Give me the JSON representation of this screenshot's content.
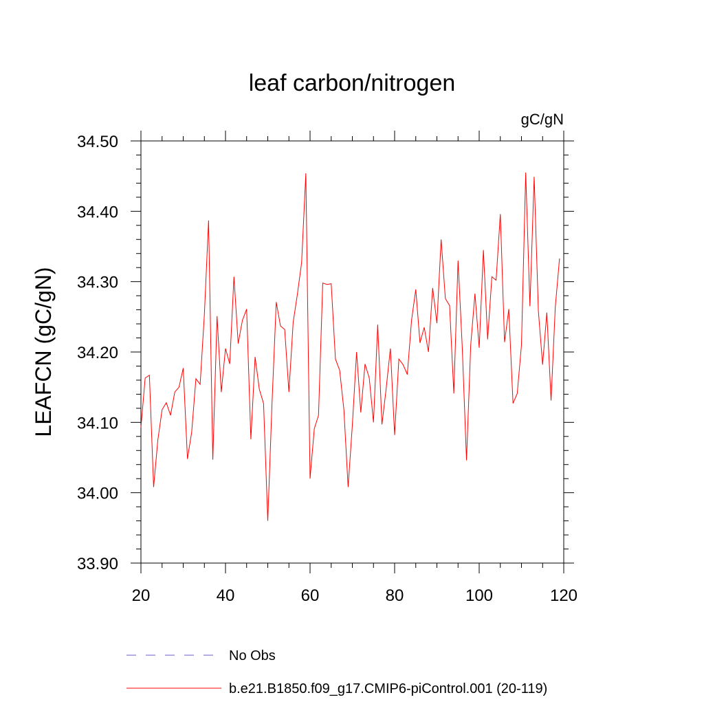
{
  "chart_data": {
    "type": "line",
    "title": "leaf carbon/nitrogen",
    "units": "gC/gN",
    "ylabel": "LEAFCN  (gC/gN)",
    "xlabel": "",
    "xlim": [
      20,
      119
    ],
    "ylim": [
      33.9,
      34.5
    ],
    "x_ticks": [
      "20",
      "40",
      "60",
      "80",
      "100",
      "120"
    ],
    "y_ticks": [
      "33.90",
      "34.00",
      "34.10",
      "34.20",
      "34.30",
      "34.40",
      "34.50"
    ],
    "colors": {
      "model": "#ff0000",
      "obs": "#6a5acd"
    },
    "series": [
      {
        "name": "b.e21.B1850.f09_g17.CMIP6-piControl.001 (20-119)",
        "x_start": 20,
        "x_step": 1,
        "values": [
          34.093,
          34.163,
          34.167,
          34.008,
          34.075,
          34.118,
          34.128,
          34.11,
          34.143,
          34.15,
          34.177,
          34.048,
          34.086,
          34.162,
          34.154,
          34.253,
          34.387,
          34.047,
          34.251,
          34.143,
          34.205,
          34.183,
          34.307,
          34.212,
          34.245,
          34.261,
          34.076,
          34.193,
          34.147,
          34.127,
          33.96,
          34.127,
          34.271,
          34.237,
          34.232,
          34.143,
          34.242,
          34.282,
          34.327,
          34.454,
          34.02,
          34.091,
          34.11,
          34.298,
          34.296,
          34.297,
          34.19,
          34.174,
          34.118,
          34.008,
          34.096,
          34.2,
          34.114,
          34.183,
          34.163,
          34.1,
          34.239,
          34.097,
          34.148,
          34.205,
          34.082,
          34.19,
          34.182,
          34.168,
          34.245,
          34.289,
          34.213,
          34.235,
          34.2,
          34.291,
          34.241,
          34.36,
          34.276,
          34.266,
          34.141,
          34.33,
          34.206,
          34.046,
          34.21,
          34.283,
          34.206,
          34.345,
          34.218,
          34.307,
          34.302,
          34.396,
          34.214,
          34.261,
          34.127,
          34.141,
          34.21,
          34.455,
          34.265,
          34.449,
          34.258,
          34.182,
          34.256,
          34.131,
          34.264,
          34.333
        ]
      }
    ],
    "legend": {
      "placement": "bottom",
      "entries": [
        {
          "label": "No Obs",
          "style": "dashed",
          "color": "#6a5acd"
        },
        {
          "label": "b.e21.B1850.f09_g17.CMIP6-piControl.001 (20-119)",
          "style": "solid",
          "color": "#ff0000"
        }
      ]
    },
    "grid": false
  }
}
